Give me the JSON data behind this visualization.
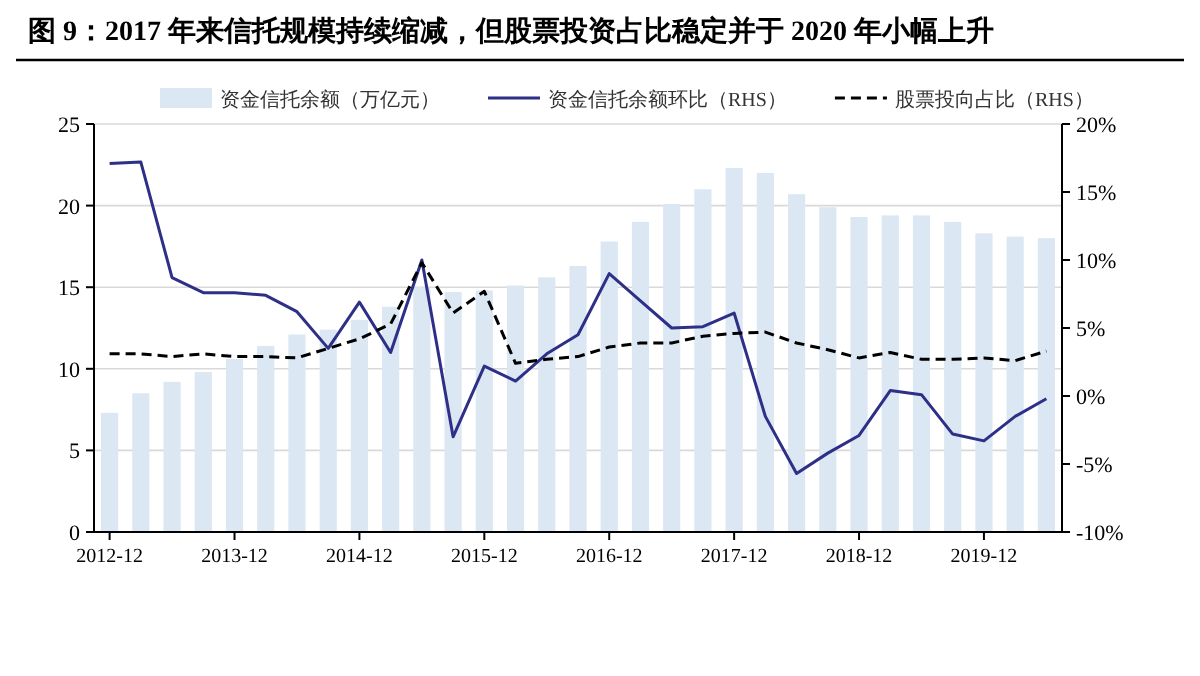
{
  "chart_data": {
    "type": "bar",
    "title": "图 9：2017 年来信托规模持续缩减，但股票投资占比稳定并于 2020 年小幅上升",
    "categories": [
      "2012-12",
      null,
      null,
      null,
      "2013-12",
      null,
      null,
      null,
      "2014-12",
      null,
      null,
      null,
      "2015-12",
      null,
      null,
      null,
      "2016-12",
      null,
      null,
      null,
      "2017-12",
      null,
      null,
      null,
      "2018-12",
      null,
      null,
      null,
      "2019-12",
      null,
      null
    ],
    "series": [
      {
        "name": "资金信托余额（万亿元）",
        "color": "#dbe7f3",
        "values": [
          7.3,
          8.5,
          9.2,
          9.8,
          10.6,
          11.4,
          12.1,
          12.4,
          13.0,
          13.8,
          15.0,
          14.7,
          14.8,
          15.1,
          15.6,
          16.3,
          17.8,
          19.0,
          20.1,
          21.0,
          22.3,
          22.0,
          20.7,
          19.9,
          19.3,
          19.4,
          19.4,
          19.0,
          18.3,
          18.1,
          18.0
        ]
      },
      {
        "type": "line",
        "axis": "y2",
        "line_style": "solid",
        "name": "资金信托余额环比（RHS）",
        "color": "#2e2f86",
        "values": [
          17.1,
          17.2,
          8.7,
          7.6,
          7.6,
          7.4,
          6.2,
          3.5,
          6.9,
          3.2,
          10.0,
          -3.0,
          2.2,
          1.1,
          3.1,
          4.5,
          9.0,
          7.0,
          5.0,
          5.1,
          6.1,
          -1.5,
          -5.7,
          -4.2,
          -2.9,
          0.4,
          0.1,
          -2.8,
          -3.3,
          -1.5,
          -0.2
        ]
      },
      {
        "type": "line",
        "axis": "y2",
        "line_style": "dashed",
        "name": "股票投向占比（RHS）",
        "color": "#000000",
        "values": [
          3.1,
          3.1,
          2.9,
          3.1,
          2.9,
          2.9,
          2.8,
          3.5,
          4.2,
          5.3,
          9.8,
          6.1,
          7.7,
          2.4,
          2.7,
          2.9,
          3.6,
          3.9,
          3.9,
          4.4,
          4.6,
          4.7,
          3.9,
          3.4,
          2.8,
          3.2,
          2.7,
          2.7,
          2.8,
          2.6,
          3.3
        ]
      }
    ],
    "ylim": [
      0,
      25
    ],
    "yticks": [
      0,
      5,
      10,
      15,
      20,
      25
    ],
    "y2lim": [
      -10,
      20
    ],
    "y2ticks": [
      {
        "value": -10,
        "label": "-10%"
      },
      {
        "value": -5,
        "label": "-5%"
      },
      {
        "value": 0,
        "label": "0%"
      },
      {
        "value": 5,
        "label": "5%"
      },
      {
        "value": 10,
        "label": "10%"
      },
      {
        "value": 15,
        "label": "15%"
      },
      {
        "value": 20,
        "label": "20%"
      }
    ],
    "grid": "y",
    "legend": "top"
  }
}
